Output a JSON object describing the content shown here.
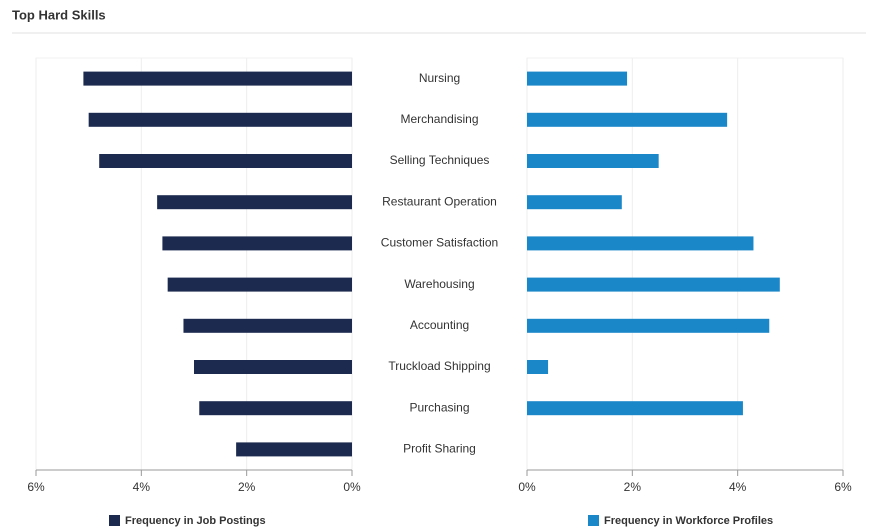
{
  "chart_data": [
    {
      "type": "bar",
      "orientation": "horizontal",
      "title": "Top Hard Skills",
      "categories": [
        "Nursing",
        "Merchandising",
        "Selling Techniques",
        "Restaurant Operation",
        "Customer Satisfaction",
        "Warehousing",
        "Accounting",
        "Truckload Shipping",
        "Purchasing",
        "Profit Sharing"
      ],
      "series": [
        {
          "name": "Frequency in Job Postings",
          "color": "#1b2a4e",
          "values": [
            5.1,
            5.0,
            4.8,
            3.7,
            3.6,
            3.5,
            3.2,
            3.0,
            2.9,
            2.2
          ]
        }
      ],
      "xlim": [
        6,
        0
      ],
      "xticks": [
        {
          "value": 6,
          "label": "6%"
        },
        {
          "value": 4,
          "label": "4%"
        },
        {
          "value": 2,
          "label": "2%"
        },
        {
          "value": 0,
          "label": "0%"
        }
      ],
      "grid": true
    },
    {
      "type": "bar",
      "orientation": "horizontal",
      "series": [
        {
          "name": "Frequency in Workforce Profiles",
          "color": "#1a87c9",
          "values": [
            1.9,
            3.8,
            2.5,
            1.8,
            4.3,
            4.8,
            4.6,
            0.4,
            4.1,
            0
          ]
        }
      ],
      "xlim": [
        0,
        6
      ],
      "xticks": [
        {
          "value": 0,
          "label": "0%"
        },
        {
          "value": 2,
          "label": "2%"
        },
        {
          "value": 4,
          "label": "4%"
        },
        {
          "value": 6,
          "label": "6%"
        }
      ],
      "grid": true
    }
  ]
}
